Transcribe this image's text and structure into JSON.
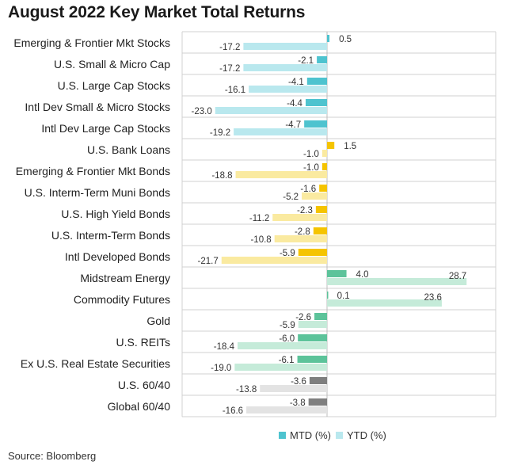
{
  "chart_data": {
    "type": "bar",
    "orientation": "horizontal",
    "title": "August 2022 Key Market Total Returns",
    "source": "Source: Bloomberg",
    "legend": {
      "position": "bottom",
      "mtd_label": "MTD (%)",
      "ytd_label": "YTD (%)"
    },
    "xlim": [
      -23.6,
      30
    ],
    "grid": true,
    "categories": [
      {
        "label": "Emerging & Frontier Mkt Stocks",
        "mtd": 0.5,
        "ytd": -17.2,
        "mtd_color": "#4ec3cf",
        "ytd_color": "#b9e8ee"
      },
      {
        "label": "U.S. Small & Micro Cap",
        "mtd": -2.1,
        "ytd": -17.2,
        "mtd_color": "#4ec3cf",
        "ytd_color": "#b9e8ee"
      },
      {
        "label": "U.S. Large Cap Stocks",
        "mtd": -4.1,
        "ytd": -16.1,
        "mtd_color": "#4ec3cf",
        "ytd_color": "#b9e8ee"
      },
      {
        "label": "Intl Dev Small & Micro Stocks",
        "mtd": -4.4,
        "ytd": -23.0,
        "mtd_color": "#4ec3cf",
        "ytd_color": "#b9e8ee"
      },
      {
        "label": "Intl Dev Large Cap Stocks",
        "mtd": -4.7,
        "ytd": -19.2,
        "mtd_color": "#4ec3cf",
        "ytd_color": "#b9e8ee"
      },
      {
        "label": "U.S. Bank Loans",
        "mtd": 1.5,
        "ytd": -1.0,
        "mtd_color": "#f5c400",
        "ytd_color": "#faeaa0"
      },
      {
        "label": "Emerging & Frontier Mkt Bonds",
        "mtd": -1.0,
        "ytd": -18.8,
        "mtd_color": "#f5c400",
        "ytd_color": "#faeaa0"
      },
      {
        "label": "U.S. Interm-Term Muni Bonds",
        "mtd": -1.6,
        "ytd": -5.2,
        "mtd_color": "#f5c400",
        "ytd_color": "#faeaa0"
      },
      {
        "label": "U.S. High Yield Bonds",
        "mtd": -2.3,
        "ytd": -11.2,
        "mtd_color": "#f5c400",
        "ytd_color": "#faeaa0"
      },
      {
        "label": "U.S. Interm-Term Bonds",
        "mtd": -2.8,
        "ytd": -10.8,
        "mtd_color": "#f5c400",
        "ytd_color": "#faeaa0"
      },
      {
        "label": "Intl Developed Bonds",
        "mtd": -5.9,
        "ytd": -21.7,
        "mtd_color": "#f5c400",
        "ytd_color": "#faeaa0"
      },
      {
        "label": "Midstream Energy",
        "mtd": 4.0,
        "ytd": 28.7,
        "mtd_color": "#5cc39a",
        "ytd_color": "#c5ebd9"
      },
      {
        "label": "Commodity Futures",
        "mtd": 0.1,
        "ytd": 23.6,
        "mtd_color": "#5cc39a",
        "ytd_color": "#c5ebd9"
      },
      {
        "label": "Gold",
        "mtd": -2.6,
        "ytd": -5.9,
        "mtd_color": "#5cc39a",
        "ytd_color": "#c5ebd9"
      },
      {
        "label": "U.S. REITs",
        "mtd": -6.0,
        "ytd": -18.4,
        "mtd_color": "#5cc39a",
        "ytd_color": "#c5ebd9"
      },
      {
        "label": "Ex U.S. Real Estate Securities",
        "mtd": -6.1,
        "ytd": -19.0,
        "mtd_color": "#5cc39a",
        "ytd_color": "#c5ebd9"
      },
      {
        "label": "U.S. 60/40",
        "mtd": -3.6,
        "ytd": -13.8,
        "mtd_color": "#7f7f7f",
        "ytd_color": "#e3e3e3"
      },
      {
        "label": "Global 60/40",
        "mtd": -3.8,
        "ytd": -16.6,
        "mtd_color": "#7f7f7f",
        "ytd_color": "#e3e3e3"
      }
    ],
    "legend_colors": {
      "mtd": "#4ec3cf",
      "ytd": "#b9e8ee"
    }
  }
}
